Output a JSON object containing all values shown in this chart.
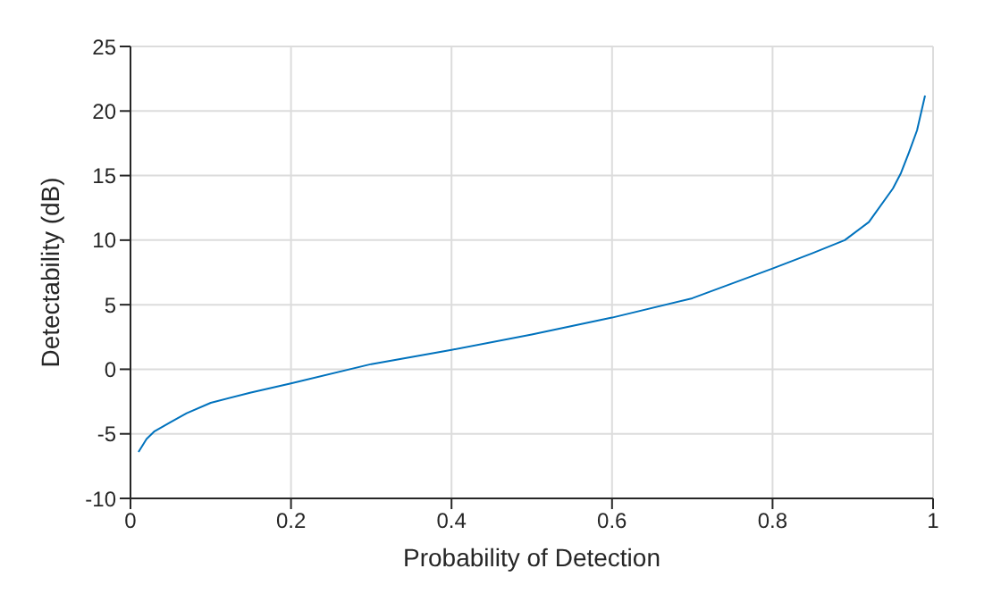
{
  "chart_data": {
    "type": "line",
    "xlabel": "Probability of Detection",
    "ylabel": "Detectability (dB)",
    "x": [
      0.01,
      0.02,
      0.03,
      0.05,
      0.07,
      0.1,
      0.15,
      0.2,
      0.3,
      0.4,
      0.5,
      0.6,
      0.7,
      0.8,
      0.85,
      0.89,
      0.92,
      0.95,
      0.96,
      0.97,
      0.98,
      0.99
    ],
    "series": [
      {
        "color": "#0072bd",
        "values": [
          -6.4,
          -5.4,
          -4.8,
          -4.1,
          -3.4,
          -2.6,
          -1.8,
          -1.1,
          0.4,
          1.5,
          2.7,
          4.0,
          5.5,
          7.8,
          9.0,
          10.0,
          11.4,
          14.0,
          15.2,
          16.8,
          18.5,
          21.2
        ]
      }
    ],
    "xlim": [
      0,
      1
    ],
    "xticks": [
      0,
      0.2,
      0.4,
      0.6,
      0.8,
      1
    ],
    "ylim": [
      -10,
      25
    ],
    "yticks": [
      -10,
      -5,
      0,
      5,
      10,
      15,
      20,
      25
    ],
    "grid": true,
    "marker": "none",
    "line_style": "solid"
  }
}
